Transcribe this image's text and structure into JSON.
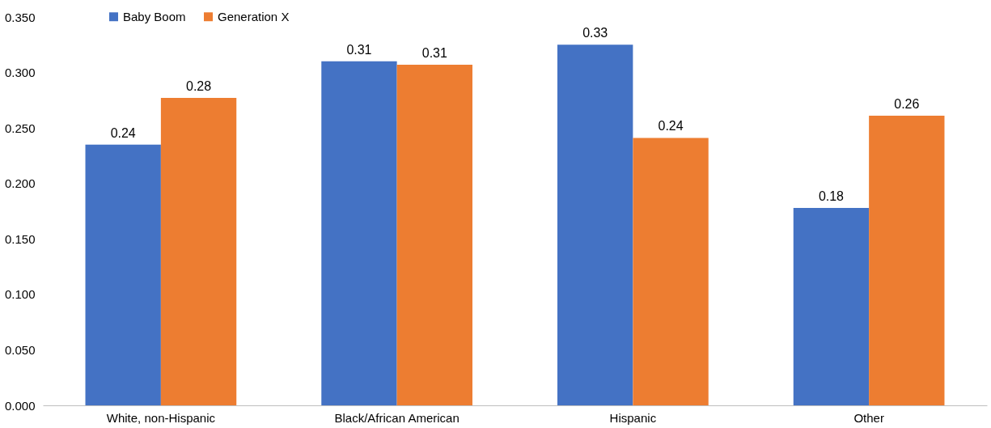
{
  "chart_data": {
    "type": "bar",
    "categories": [
      "White, non-Hispanic",
      "Black/African American",
      "Hispanic",
      "Other"
    ],
    "series": [
      {
        "name": "Baby Boom",
        "color": "#4472c4",
        "values": [
          0.235,
          0.31,
          0.325,
          0.178
        ],
        "value_labels": [
          "0.24",
          "0.31",
          "0.33",
          "0.18"
        ]
      },
      {
        "name": "Generation X",
        "color": "#ed7d31",
        "values": [
          0.277,
          0.307,
          0.241,
          0.261
        ],
        "value_labels": [
          "0.28",
          "0.31",
          "0.24",
          "0.26"
        ]
      }
    ],
    "ylim": [
      0,
      0.35
    ],
    "yticks": [
      {
        "value": 0,
        "label": "0.000"
      },
      {
        "value": 0.05,
        "label": "0.050"
      },
      {
        "value": 0.1,
        "label": "0.100"
      },
      {
        "value": 0.15,
        "label": "0.150"
      },
      {
        "value": 0.2,
        "label": "0.200"
      },
      {
        "value": 0.25,
        "label": "0.250"
      },
      {
        "value": 0.3,
        "label": "0.300"
      },
      {
        "value": 0.35,
        "label": "0.350"
      }
    ],
    "grid": false,
    "legend": "top left"
  }
}
